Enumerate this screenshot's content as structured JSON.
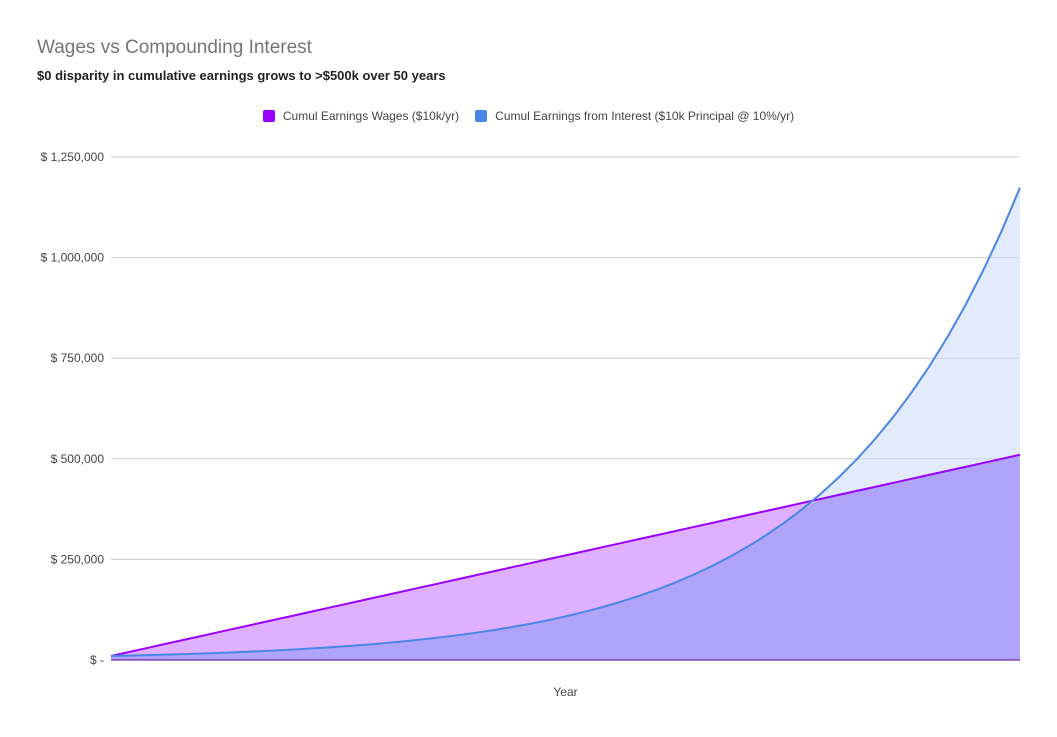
{
  "chart_data": {
    "type": "area",
    "title": "Wages vs Compounding Interest",
    "subtitle": "$0 disparity in cumulative earnings grows to >$500k over 50 years",
    "xlabel": "Year",
    "ylabel": "",
    "ylim": [
      0,
      1250000
    ],
    "y_ticks": [
      {
        "value": 0,
        "label": "$ -"
      },
      {
        "value": 250000,
        "label": "$ 250,000"
      },
      {
        "value": 500000,
        "label": "$ 500,000"
      },
      {
        "value": 750000,
        "label": "$ 750,000"
      },
      {
        "value": 1000000,
        "label": "$ 1,000,000"
      },
      {
        "value": 1250000,
        "label": "$ 1,250,000"
      }
    ],
    "x": [
      1,
      2,
      3,
      4,
      5,
      6,
      7,
      8,
      9,
      10,
      11,
      12,
      13,
      14,
      15,
      16,
      17,
      18,
      19,
      20,
      21,
      22,
      23,
      24,
      25,
      26,
      27,
      28,
      29,
      30,
      31,
      32,
      33,
      34,
      35,
      36,
      37,
      38,
      39,
      40,
      41,
      42,
      43,
      44,
      45,
      46,
      47,
      48,
      49,
      50,
      51
    ],
    "grid": true,
    "legend_position": "top",
    "series": [
      {
        "name": "Cumul Earnings Wages ($10k/yr)",
        "color": "#9900ff",
        "fill": "#dfb0ff",
        "values": [
          10000,
          20000,
          30000,
          40000,
          50000,
          60000,
          70000,
          80000,
          90000,
          100000,
          110000,
          120000,
          130000,
          140000,
          150000,
          160000,
          170000,
          180000,
          190000,
          200000,
          210000,
          220000,
          230000,
          240000,
          250000,
          260000,
          270000,
          280000,
          290000,
          300000,
          310000,
          320000,
          330000,
          340000,
          350000,
          360000,
          370000,
          380000,
          390000,
          400000,
          410000,
          420000,
          430000,
          440000,
          450000,
          460000,
          470000,
          480000,
          490000,
          500000,
          510000
        ]
      },
      {
        "name": "Cumul Earnings from Interest ($10k Principal @ 10%/yr)",
        "color": "#4a86e8",
        "fill": "#c9daf8",
        "values": [
          10000,
          11000,
          12100,
          13310,
          14641,
          16105,
          17716,
          19487,
          21436,
          23579,
          25937,
          28531,
          31384,
          34523,
          37975,
          41772,
          45950,
          50545,
          55599,
          61159,
          67275,
          74002,
          81403,
          89543,
          98497,
          108347,
          119182,
          131100,
          144210,
          158631,
          174494,
          191943,
          211138,
          232252,
          255477,
          281024,
          309127,
          340039,
          374043,
          411448,
          452593,
          497852,
          547637,
          602401,
          662641,
          728905,
          801795,
          881975,
          970172,
          1067190,
          1173909
        ]
      }
    ]
  }
}
